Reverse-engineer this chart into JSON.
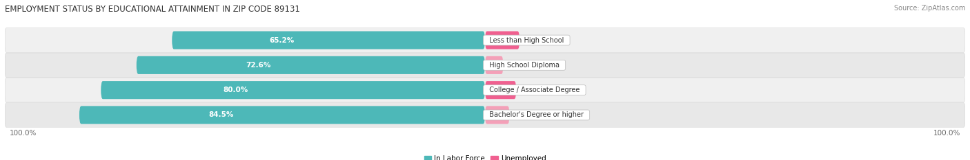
{
  "title": "EMPLOYMENT STATUS BY EDUCATIONAL ATTAINMENT IN ZIP CODE 89131",
  "source": "Source: ZipAtlas.com",
  "categories": [
    "Less than High School",
    "High School Diploma",
    "College / Associate Degree",
    "Bachelor's Degree or higher"
  ],
  "labor_force": [
    65.2,
    72.6,
    80.0,
    84.5
  ],
  "unemployed": [
    7.2,
    3.8,
    6.5,
    5.1
  ],
  "labor_force_color": "#4db8b8",
  "unemployed_color_1": "#f06090",
  "unemployed_color_2": "#f4a0b8",
  "unemployed_colors": [
    "#f06090",
    "#f4a0b8",
    "#f06090",
    "#f4a0b8"
  ],
  "row_bg_colors": [
    "#f0f0f0",
    "#e8e8e8"
  ],
  "title_fontsize": 8.5,
  "label_fontsize": 7.5,
  "tick_fontsize": 7.5,
  "source_fontsize": 7,
  "legend_fontsize": 7.5,
  "left_axis_label": "100.0%",
  "right_axis_label": "100.0%"
}
